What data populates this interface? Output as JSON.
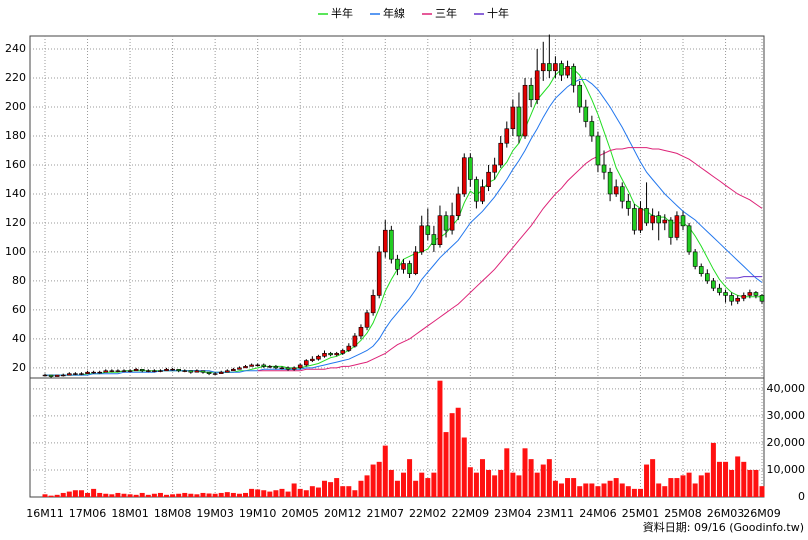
{
  "chart_data": {
    "type": "candlestick",
    "up_color": "#e00000",
    "down_color": "#22cc22",
    "ylim": [
      13,
      249
    ],
    "yticks": [
      20,
      40,
      60,
      80,
      100,
      120,
      140,
      160,
      180,
      200,
      220,
      240
    ],
    "grid": true,
    "categories": [
      "16M11",
      null,
      null,
      null,
      null,
      null,
      null,
      "17M06",
      null,
      null,
      null,
      null,
      null,
      null,
      "18M01",
      null,
      null,
      null,
      null,
      null,
      null,
      "18M08",
      null,
      null,
      null,
      null,
      null,
      null,
      "19M03",
      null,
      null,
      null,
      null,
      null,
      null,
      "19M10",
      null,
      null,
      null,
      null,
      null,
      null,
      "20M05",
      null,
      null,
      null,
      null,
      null,
      null,
      "20M12",
      null,
      null,
      null,
      null,
      null,
      null,
      "21M07",
      null,
      null,
      null,
      null,
      null,
      null,
      "22M02",
      null,
      null,
      null,
      null,
      null,
      null,
      "22M09",
      null,
      null,
      null,
      null,
      null,
      null,
      "23M04",
      null,
      null,
      null,
      null,
      null,
      null,
      "23M11",
      null,
      null,
      null,
      null,
      null,
      null,
      "24M06",
      null,
      null,
      null,
      null,
      null,
      null,
      "25M01",
      null,
      null,
      null,
      null,
      null,
      null,
      "25M08",
      null,
      null,
      null,
      null,
      null,
      null,
      "26M03",
      null,
      null,
      null,
      null,
      null,
      "26M09"
    ],
    "candles": [
      [
        15,
        16,
        14,
        15
      ],
      [
        15,
        15,
        13,
        14
      ],
      [
        14,
        15,
        14,
        15
      ],
      [
        15,
        16,
        14,
        15
      ],
      [
        15,
        17,
        15,
        16
      ],
      [
        16,
        17,
        15,
        16
      ],
      [
        16,
        17,
        15,
        16
      ],
      [
        16,
        18,
        16,
        17
      ],
      [
        17,
        18,
        16,
        17
      ],
      [
        17,
        18,
        16,
        17
      ],
      [
        17,
        19,
        17,
        18
      ],
      [
        18,
        19,
        17,
        18
      ],
      [
        18,
        19,
        17,
        18
      ],
      [
        18,
        19,
        17,
        18
      ],
      [
        18,
        19,
        17,
        18
      ],
      [
        18,
        20,
        18,
        19
      ],
      [
        19,
        19,
        17,
        18
      ],
      [
        18,
        19,
        17,
        18
      ],
      [
        18,
        19,
        17,
        18
      ],
      [
        18,
        19,
        17,
        18
      ],
      [
        18,
        20,
        18,
        19
      ],
      [
        19,
        20,
        18,
        19
      ],
      [
        19,
        19,
        17,
        18
      ],
      [
        18,
        19,
        17,
        18
      ],
      [
        18,
        18,
        16,
        17
      ],
      [
        17,
        19,
        17,
        18
      ],
      [
        18,
        18,
        16,
        17
      ],
      [
        17,
        17,
        15,
        16
      ],
      [
        16,
        17,
        15,
        16
      ],
      [
        16,
        18,
        16,
        17
      ],
      [
        17,
        19,
        17,
        18
      ],
      [
        18,
        20,
        18,
        19
      ],
      [
        19,
        21,
        19,
        20
      ],
      [
        20,
        22,
        20,
        21
      ],
      [
        21,
        23,
        21,
        22
      ],
      [
        22,
        23,
        21,
        22
      ],
      [
        22,
        23,
        20,
        21
      ],
      [
        21,
        22,
        20,
        21
      ],
      [
        21,
        22,
        19,
        20
      ],
      [
        20,
        21,
        19,
        20
      ],
      [
        20,
        21,
        18,
        19
      ],
      [
        19,
        21,
        18,
        20
      ],
      [
        20,
        23,
        19,
        22
      ],
      [
        22,
        26,
        21,
        25
      ],
      [
        25,
        28,
        24,
        26
      ],
      [
        26,
        29,
        25,
        28
      ],
      [
        28,
        32,
        27,
        30
      ],
      [
        30,
        31,
        28,
        29
      ],
      [
        29,
        31,
        28,
        30
      ],
      [
        30,
        33,
        29,
        32
      ],
      [
        32,
        37,
        31,
        35
      ],
      [
        35,
        44,
        34,
        42
      ],
      [
        42,
        50,
        40,
        48
      ],
      [
        48,
        60,
        46,
        58
      ],
      [
        58,
        74,
        56,
        70
      ],
      [
        70,
        104,
        68,
        100
      ],
      [
        100,
        122,
        96,
        115
      ],
      [
        115,
        118,
        92,
        95
      ],
      [
        95,
        98,
        84,
        88
      ],
      [
        88,
        95,
        85,
        92
      ],
      [
        92,
        94,
        82,
        85
      ],
      [
        85,
        104,
        84,
        100
      ],
      [
        100,
        125,
        98,
        118
      ],
      [
        118,
        130,
        108,
        112
      ],
      [
        112,
        118,
        100,
        105
      ],
      [
        105,
        132,
        103,
        125
      ],
      [
        125,
        128,
        110,
        115
      ],
      [
        115,
        134,
        112,
        125
      ],
      [
        125,
        145,
        122,
        140
      ],
      [
        140,
        168,
        138,
        165
      ],
      [
        165,
        168,
        145,
        150
      ],
      [
        150,
        152,
        130,
        135
      ],
      [
        135,
        150,
        133,
        145
      ],
      [
        145,
        160,
        142,
        155
      ],
      [
        155,
        165,
        150,
        160
      ],
      [
        160,
        180,
        158,
        175
      ],
      [
        175,
        190,
        172,
        185
      ],
      [
        185,
        205,
        180,
        200
      ],
      [
        200,
        210,
        175,
        180
      ],
      [
        180,
        220,
        178,
        215
      ],
      [
        215,
        220,
        200,
        205
      ],
      [
        205,
        240,
        202,
        225
      ],
      [
        225,
        245,
        218,
        230
      ],
      [
        230,
        250,
        220,
        225
      ],
      [
        225,
        235,
        220,
        230
      ],
      [
        230,
        232,
        218,
        222
      ],
      [
        222,
        232,
        220,
        228
      ],
      [
        228,
        230,
        210,
        215
      ],
      [
        215,
        218,
        196,
        200
      ],
      [
        200,
        205,
        186,
        190
      ],
      [
        190,
        194,
        176,
        180
      ],
      [
        180,
        183,
        155,
        160
      ],
      [
        160,
        170,
        150,
        155
      ],
      [
        155,
        158,
        135,
        140
      ],
      [
        140,
        150,
        138,
        145
      ],
      [
        145,
        148,
        130,
        135
      ],
      [
        135,
        140,
        125,
        130
      ],
      [
        130,
        133,
        112,
        115
      ],
      [
        115,
        135,
        113,
        130
      ],
      [
        130,
        148,
        118,
        120
      ],
      [
        120,
        130,
        115,
        125
      ],
      [
        125,
        128,
        108,
        120
      ],
      [
        120,
        126,
        115,
        122
      ],
      [
        122,
        124,
        105,
        110
      ],
      [
        110,
        128,
        108,
        125
      ],
      [
        125,
        128,
        115,
        118
      ],
      [
        118,
        120,
        98,
        100
      ],
      [
        100,
        102,
        88,
        90
      ],
      [
        90,
        92,
        83,
        85
      ],
      [
        85,
        88,
        78,
        80
      ],
      [
        80,
        82,
        73,
        75
      ],
      [
        75,
        78,
        70,
        72
      ],
      [
        72,
        74,
        65,
        70
      ],
      [
        70,
        72,
        63,
        66
      ],
      [
        66,
        70,
        64,
        68
      ],
      [
        68,
        72,
        66,
        70
      ],
      [
        70,
        74,
        68,
        72
      ],
      [
        72,
        73,
        68,
        70
      ],
      [
        70,
        71,
        64,
        66
      ]
    ],
    "series": [
      {
        "name": "半年",
        "color": "#22dd22",
        "values": [
          15,
          15,
          15,
          15,
          15,
          15,
          15,
          16,
          16,
          16,
          17,
          17,
          17,
          18,
          18,
          18,
          18,
          18,
          18,
          18,
          18,
          18,
          18,
          18,
          18,
          18,
          17,
          17,
          17,
          17,
          17,
          17,
          18,
          18,
          19,
          20,
          21,
          21,
          21,
          21,
          20,
          20,
          20,
          21,
          22,
          23,
          25,
          27,
          28,
          30,
          32,
          35,
          39,
          44,
          51,
          61,
          73,
          81,
          88,
          95,
          97,
          99,
          100,
          102,
          108,
          110,
          113,
          118,
          123,
          134,
          142,
          139,
          143,
          148,
          150,
          157,
          162,
          170,
          175,
          185,
          195,
          205,
          210,
          215,
          222,
          226,
          227,
          226,
          222,
          214,
          205,
          195,
          183,
          171,
          158,
          150,
          142,
          133,
          130,
          128,
          125,
          124,
          124,
          120,
          120,
          120,
          117,
          111,
          104,
          96,
          88,
          81,
          76,
          72,
          70,
          69,
          69,
          69,
          69
        ]
      },
      {
        "name": "年線",
        "color": "#2277ee",
        "values": [
          15,
          15,
          15,
          15,
          15,
          15,
          15,
          15,
          16,
          16,
          16,
          16,
          16,
          17,
          17,
          17,
          17,
          17,
          17,
          18,
          18,
          18,
          18,
          18,
          18,
          18,
          18,
          18,
          17,
          17,
          17,
          17,
          17,
          18,
          18,
          18,
          19,
          19,
          19,
          19,
          19,
          19,
          19,
          20,
          20,
          21,
          22,
          23,
          24,
          25,
          26,
          28,
          30,
          32,
          35,
          40,
          47,
          53,
          58,
          63,
          68,
          74,
          81,
          86,
          91,
          96,
          100,
          104,
          108,
          114,
          120,
          124,
          128,
          133,
          138,
          144,
          150,
          157,
          163,
          170,
          178,
          185,
          193,
          200,
          206,
          210,
          214,
          217,
          219,
          219,
          216,
          212,
          206,
          200,
          193,
          186,
          178,
          170,
          162,
          155,
          150,
          145,
          140,
          136,
          132,
          128,
          125,
          122,
          118,
          114,
          110,
          106,
          102,
          98,
          94,
          90,
          86,
          82,
          79
        ]
      },
      {
        "name": "三年",
        "color": "#dd2277",
        "values": [
          null,
          null,
          null,
          null,
          null,
          null,
          null,
          null,
          null,
          null,
          null,
          null,
          null,
          null,
          null,
          null,
          null,
          null,
          null,
          null,
          null,
          null,
          null,
          null,
          null,
          null,
          null,
          null,
          null,
          null,
          null,
          null,
          null,
          null,
          null,
          18,
          18,
          18,
          18,
          18,
          18,
          18,
          18,
          19,
          19,
          19,
          19,
          20,
          20,
          21,
          21,
          22,
          23,
          24,
          26,
          28,
          30,
          33,
          36,
          38,
          40,
          43,
          46,
          49,
          52,
          55,
          58,
          61,
          64,
          68,
          72,
          76,
          80,
          84,
          88,
          93,
          98,
          103,
          108,
          113,
          118,
          124,
          130,
          135,
          140,
          144,
          149,
          153,
          157,
          161,
          164,
          166,
          168,
          170,
          171,
          171,
          172,
          172,
          172,
          172,
          171,
          171,
          170,
          169,
          168,
          166,
          164,
          161,
          158,
          155,
          152,
          149,
          146,
          143,
          140,
          138,
          136,
          133,
          130
        ]
      },
      {
        "name": "十年",
        "color": "#6633cc",
        "values": [
          null,
          null,
          null,
          null,
          null,
          null,
          null,
          null,
          null,
          null,
          null,
          null,
          null,
          null,
          null,
          null,
          null,
          null,
          null,
          null,
          null,
          null,
          null,
          null,
          null,
          null,
          null,
          null,
          null,
          null,
          null,
          null,
          null,
          null,
          null,
          null,
          null,
          null,
          null,
          null,
          null,
          null,
          null,
          null,
          null,
          null,
          null,
          null,
          null,
          null,
          null,
          null,
          null,
          null,
          null,
          null,
          null,
          null,
          null,
          null,
          null,
          null,
          null,
          null,
          null,
          null,
          null,
          null,
          null,
          null,
          null,
          null,
          null,
          null,
          null,
          null,
          null,
          null,
          null,
          null,
          null,
          null,
          null,
          null,
          null,
          null,
          null,
          null,
          null,
          null,
          null,
          null,
          null,
          null,
          null,
          null,
          null,
          null,
          null,
          null,
          null,
          null,
          null,
          null,
          null,
          null,
          null,
          null,
          null,
          null,
          null,
          null,
          82,
          82,
          82,
          83,
          83,
          83,
          83
        ]
      }
    ],
    "volume": {
      "color": "#ff1111",
      "ylim": [
        0,
        44000
      ],
      "yticks": [
        0,
        {
          "value": 10000,
          "label": "10,000"
        },
        {
          "value": 20000,
          "label": "20,000"
        },
        {
          "value": 30000,
          "label": "30,000"
        },
        {
          "value": 40000,
          "label": "40,000"
        }
      ],
      "values": [
        1000,
        500,
        800,
        1500,
        2000,
        2500,
        2500,
        1500,
        3000,
        1500,
        1200,
        1000,
        1500,
        1200,
        1000,
        800,
        1500,
        800,
        1200,
        1500,
        800,
        1000,
        1200,
        1500,
        1200,
        1000,
        1500,
        1300,
        1200,
        1500,
        1800,
        1500,
        1200,
        1500,
        3000,
        2800,
        2500,
        2000,
        2500,
        3000,
        2000,
        5000,
        3000,
        2500,
        4000,
        3500,
        6000,
        5500,
        7000,
        4000,
        4000,
        2500,
        6000,
        8000,
        12000,
        13000,
        19000,
        10000,
        6000,
        9000,
        14000,
        6000,
        9000,
        7000,
        9000,
        43000,
        24000,
        31000,
        33000,
        22000,
        11000,
        9000,
        14000,
        10000,
        8000,
        10000,
        18000,
        9000,
        8000,
        18000,
        14000,
        9000,
        12000,
        14000,
        6000,
        5000,
        7000,
        7000,
        4000,
        5000,
        5000,
        4000,
        5000,
        6000,
        7000,
        5000,
        4000,
        3000,
        3000,
        12000,
        14000,
        5000,
        4000,
        7000,
        7000,
        8000,
        9000,
        5000,
        8000,
        9000,
        20000,
        13000,
        13000,
        10000,
        15000,
        13000,
        10000,
        10000,
        4000
      ]
    },
    "source": "資料日期: 09/16  (Goodinfo.tw)"
  }
}
